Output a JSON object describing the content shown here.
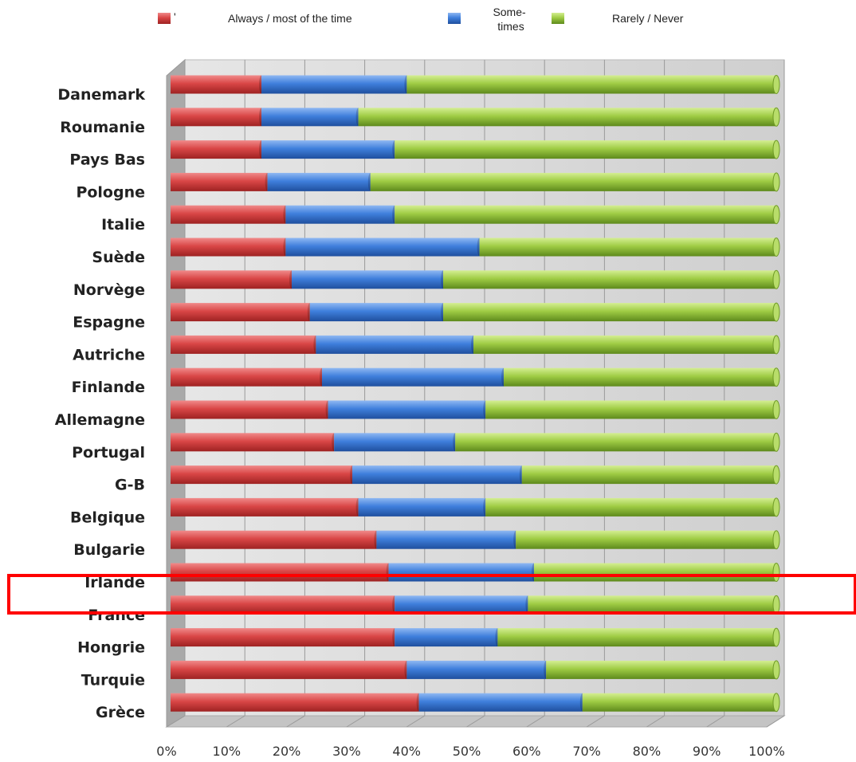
{
  "chart_data": {
    "type": "bar",
    "orientation": "horizontal",
    "stacked": true,
    "percent_stacked": true,
    "style": "3d-cylinder",
    "categories": [
      "Danemark",
      "Roumanie",
      "Pays Bas",
      "Pologne",
      "Italie",
      "Suède",
      "Norvège",
      "Espagne",
      "Autriche",
      "Finlande",
      "Allemagne",
      "Portugal",
      "G-B",
      "Belgique",
      "Bulgarie",
      "Irlande",
      "France",
      "Hongrie",
      "Turquie",
      "Grèce"
    ],
    "series": [
      {
        "name": "Always / most of the time",
        "color": "#d94646",
        "values": [
          15,
          15,
          15,
          16,
          19,
          19,
          20,
          23,
          24,
          25,
          26,
          27,
          30,
          31,
          34,
          36,
          37,
          37,
          39,
          41
        ]
      },
      {
        "name": "Some-times",
        "color": "#3f7fdc",
        "values": [
          24,
          16,
          22,
          17,
          18,
          32,
          25,
          22,
          26,
          30,
          26,
          20,
          28,
          21,
          23,
          24,
          22,
          17,
          23,
          27
        ]
      },
      {
        "name": "Rarely / Never",
        "color": "#9fcc44",
        "values": [
          61,
          69,
          63,
          67,
          63,
          49,
          55,
          55,
          50,
          45,
          48,
          53,
          42,
          48,
          43,
          40,
          41,
          46,
          38,
          32
        ]
      }
    ],
    "legend_marker_mark": "'",
    "x_ticks": [
      "0%",
      "10%",
      "20%",
      "30%",
      "40%",
      "50%",
      "60%",
      "70%",
      "80%",
      "90%",
      "100%"
    ],
    "xlim": [
      0,
      100
    ],
    "grid": true,
    "legend_position": "top",
    "highlight": {
      "categories": [
        "Irlande",
        "France"
      ],
      "label_color": "#ff0000",
      "box_color": "#ff0000"
    }
  }
}
